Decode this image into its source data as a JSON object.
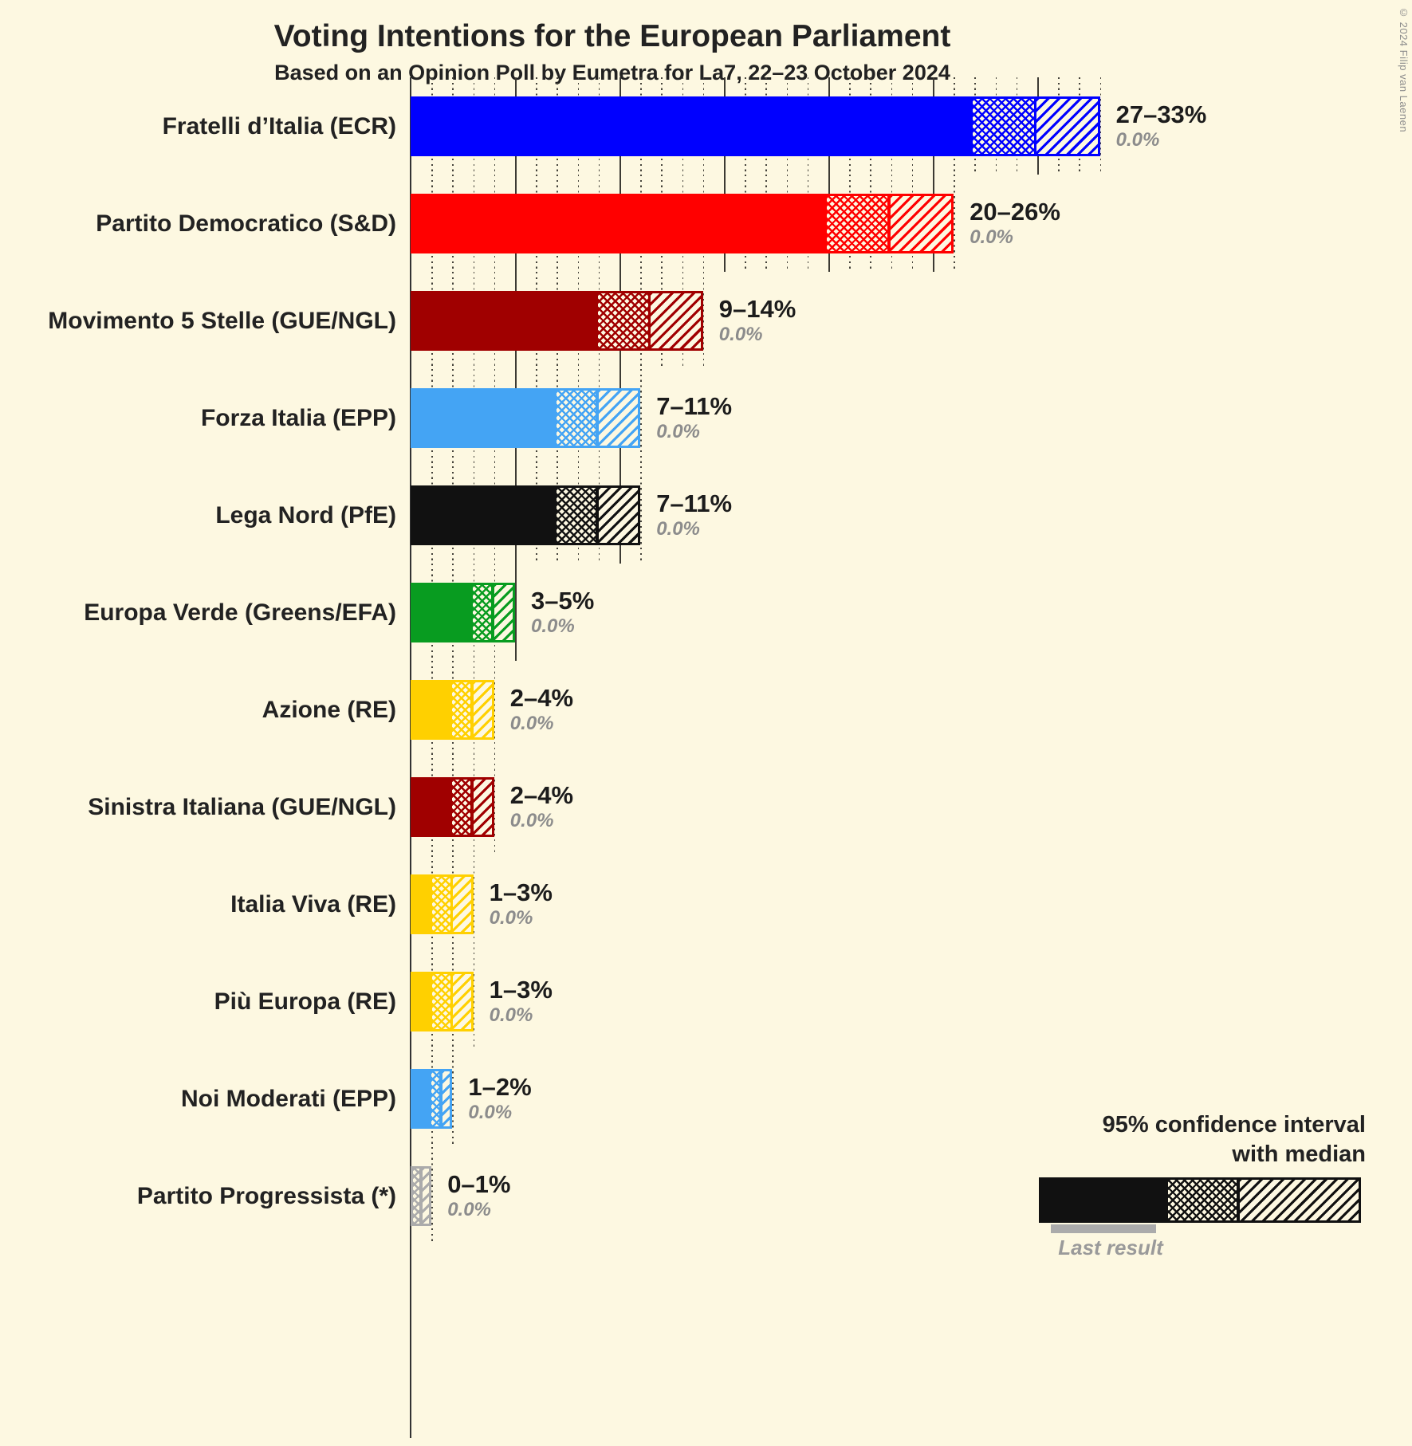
{
  "watermark": "© 2024 Filip van Laenen",
  "legend": {
    "line1": "95% confidence interval",
    "line2": "with median",
    "last_result_label": "Last result"
  },
  "colors": {
    "background": "#FDF8E1",
    "text": "#222222",
    "muted_text": "#8C8C8C",
    "axis": "#333333"
  },
  "chart_data": {
    "type": "bar",
    "orientation": "horizontal",
    "title": "Voting Intentions for the European Parliament",
    "subtitle": "Based on an Opinion Poll by Eumetra for La7, 22–23 October 2024",
    "unit": "percent",
    "axis": {
      "min": 0,
      "max": 33,
      "minor_tick": 1,
      "major_tick": 5
    },
    "encoding_note": "Each bar shows a 95% confidence interval: solid fill from 0 to lower bound, crosshatch from lower bound to median, diagonal hatch from median to upper bound, with a vertical median line; gray underline marks last result (all 0.0%).",
    "series": [
      {
        "party": "Fratelli d’Italia (ECR)",
        "color": "#0000FF",
        "ci_low": 27,
        "median": 30,
        "ci_high": 33,
        "ci_label": "27–33%",
        "last_result": 0,
        "last_result_label": "0.0%"
      },
      {
        "party": "Partito Democratico (S&D)",
        "color": "#FF0000",
        "ci_low": 20,
        "median": 23,
        "ci_high": 26,
        "ci_label": "20–26%",
        "last_result": 0,
        "last_result_label": "0.0%"
      },
      {
        "party": "Movimento 5 Stelle (GUE/NGL)",
        "color": "#A00000",
        "ci_low": 9,
        "median": 11.5,
        "ci_high": 14,
        "ci_label": "9–14%",
        "last_result": 0,
        "last_result_label": "0.0%"
      },
      {
        "party": "Forza Italia (EPP)",
        "color": "#44A4F4",
        "ci_low": 7,
        "median": 9,
        "ci_high": 11,
        "ci_label": "7–11%",
        "last_result": 0,
        "last_result_label": "0.0%"
      },
      {
        "party": "Lega Nord (PfE)",
        "color": "#111111",
        "ci_low": 7,
        "median": 9,
        "ci_high": 11,
        "ci_label": "7–11%",
        "last_result": 0,
        "last_result_label": "0.0%"
      },
      {
        "party": "Europa Verde (Greens/EFA)",
        "color": "#089C20",
        "ci_low": 3,
        "median": 4,
        "ci_high": 5,
        "ci_label": "3–5%",
        "last_result": 0,
        "last_result_label": "0.0%"
      },
      {
        "party": "Azione (RE)",
        "color": "#FFD000",
        "ci_low": 2,
        "median": 3,
        "ci_high": 4,
        "ci_label": "2–4%",
        "last_result": 0,
        "last_result_label": "0.0%"
      },
      {
        "party": "Sinistra Italiana (GUE/NGL)",
        "color": "#A00000",
        "ci_low": 2,
        "median": 3,
        "ci_high": 4,
        "ci_label": "2–4%",
        "last_result": 0,
        "last_result_label": "0.0%"
      },
      {
        "party": "Italia Viva (RE)",
        "color": "#FFD000",
        "ci_low": 1,
        "median": 2,
        "ci_high": 3,
        "ci_label": "1–3%",
        "last_result": 0,
        "last_result_label": "0.0%"
      },
      {
        "party": "Più Europa (RE)",
        "color": "#FFD000",
        "ci_low": 1,
        "median": 2,
        "ci_high": 3,
        "ci_label": "1–3%",
        "last_result": 0,
        "last_result_label": "0.0%"
      },
      {
        "party": "Noi Moderati (EPP)",
        "color": "#44A4F4",
        "ci_low": 1,
        "median": 1.5,
        "ci_high": 2,
        "ci_label": "1–2%",
        "last_result": 0,
        "last_result_label": "0.0%"
      },
      {
        "party": "Partito Progressista (*)",
        "color": "#ABABAB",
        "ci_low": 0,
        "median": 0.5,
        "ci_high": 1,
        "ci_label": "0–1%",
        "last_result": 0,
        "last_result_label": "0.0%"
      }
    ]
  }
}
